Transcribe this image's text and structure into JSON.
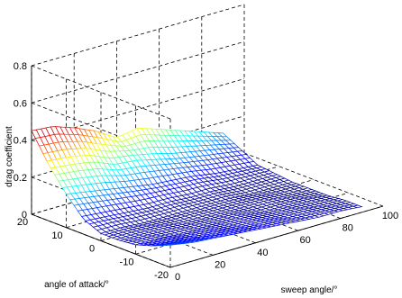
{
  "chart_data": {
    "type": "surface",
    "title": "",
    "xlabel": "sweep angle/°",
    "ylabel": "angle of attack/°",
    "zlabel": "drag coefficient",
    "xlim": [
      0,
      100
    ],
    "ylim": [
      -20,
      20
    ],
    "zlim": [
      0,
      0.8
    ],
    "x_ticks": [
      0,
      20,
      40,
      60,
      80,
      100
    ],
    "y_ticks": [
      -20,
      -10,
      0,
      10,
      20
    ],
    "z_ticks": [
      0,
      0.2,
      0.4,
      0.6,
      0.8
    ],
    "grid": true,
    "colormap": "jet",
    "sweep_angle": [
      0,
      10,
      20,
      30,
      40,
      50,
      60,
      70,
      80,
      90
    ],
    "angle_of_attack": [
      -20,
      -15,
      -10,
      -5,
      0,
      5,
      10,
      15,
      20
    ],
    "drag_coefficient": [
      [
        0.12,
        0.1,
        0.09,
        0.08,
        0.07,
        0.06,
        0.05,
        0.04,
        0.04,
        0.03
      ],
      [
        0.08,
        0.07,
        0.06,
        0.06,
        0.05,
        0.05,
        0.04,
        0.04,
        0.03,
        0.03
      ],
      [
        0.05,
        0.05,
        0.04,
        0.04,
        0.04,
        0.04,
        0.03,
        0.03,
        0.03,
        0.02
      ],
      [
        0.04,
        0.04,
        0.04,
        0.03,
        0.03,
        0.03,
        0.03,
        0.03,
        0.02,
        0.02
      ],
      [
        0.04,
        0.04,
        0.03,
        0.03,
        0.03,
        0.03,
        0.03,
        0.02,
        0.02,
        0.02
      ],
      [
        0.08,
        0.07,
        0.06,
        0.05,
        0.05,
        0.04,
        0.04,
        0.03,
        0.03,
        0.03
      ],
      [
        0.18,
        0.16,
        0.14,
        0.12,
        0.1,
        0.09,
        0.08,
        0.06,
        0.05,
        0.04
      ],
      [
        0.3,
        0.29,
        0.27,
        0.22,
        0.21,
        0.18,
        0.15,
        0.13,
        0.11,
        0.09
      ],
      [
        0.45,
        0.44,
        0.4,
        0.35,
        0.28,
        0.3,
        0.26,
        0.22,
        0.18,
        0.14
      ]
    ]
  }
}
